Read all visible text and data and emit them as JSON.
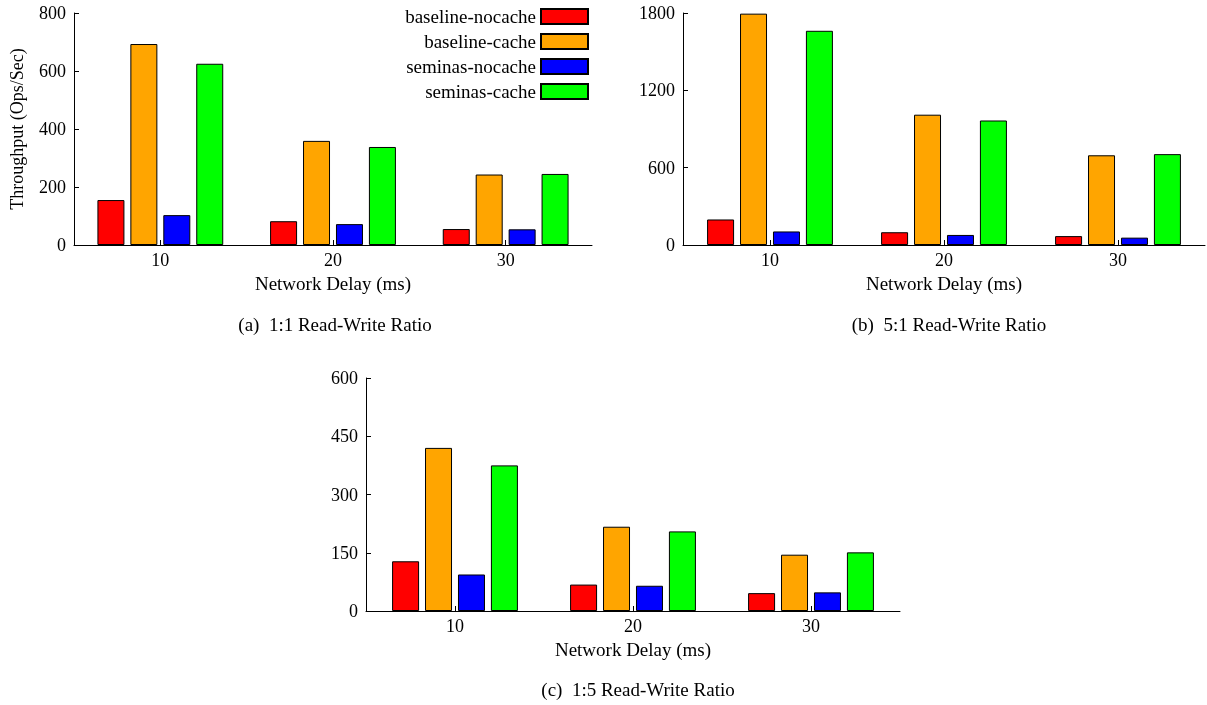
{
  "chart_data": [
    {
      "type": "bar",
      "title": "(a)  1:1 Read-Write Ratio",
      "xlabel": "Network Delay (ms)",
      "ylabel": "Throughput (Ops/Sec)",
      "categories": [
        "10",
        "20",
        "30"
      ],
      "ylim": [
        0,
        800
      ],
      "yticks": [
        0,
        200,
        400,
        600,
        800
      ],
      "legend": "top right",
      "series": [
        {
          "name": "baseline-nocache",
          "color": "#ff0000",
          "values": [
            155,
            82,
            55
          ]
        },
        {
          "name": "baseline-cache",
          "color": "#ffa500",
          "values": [
            693,
            359,
            243
          ]
        },
        {
          "name": "seminas-nocache",
          "color": "#0000ff",
          "values": [
            103,
            72,
            54
          ]
        },
        {
          "name": "seminas-cache",
          "color": "#00ff00",
          "values": [
            625,
            338,
            245
          ]
        }
      ]
    },
    {
      "type": "bar",
      "title": "(b)  5:1 Read-Write Ratio",
      "xlabel": "Network Delay (ms)",
      "categories": [
        "10",
        "20",
        "30"
      ],
      "ylim": [
        0,
        1800
      ],
      "yticks": [
        0,
        600,
        1200,
        1800
      ],
      "series": [
        {
          "color": "#ff0000",
          "values": [
            198,
            99,
            69
          ]
        },
        {
          "color": "#ffa500",
          "values": [
            1795,
            1011,
            696
          ]
        },
        {
          "color": "#0000ff",
          "values": [
            105,
            78,
            57
          ]
        },
        {
          "color": "#00ff00",
          "values": [
            1662,
            966,
            705
          ]
        }
      ]
    },
    {
      "type": "bar",
      "title": "(c)  1:5 Read-Write Ratio",
      "xlabel": "Network Delay (ms)",
      "categories": [
        "10",
        "20",
        "30"
      ],
      "ylim": [
        0,
        600
      ],
      "yticks": [
        0,
        150,
        300,
        450,
        600
      ],
      "series": [
        {
          "color": "#ff0000",
          "values": [
            128,
            68,
            46
          ]
        },
        {
          "color": "#ffa500",
          "values": [
            420,
            217,
            145
          ]
        },
        {
          "color": "#0000ff",
          "values": [
            94,
            65,
            48
          ]
        },
        {
          "color": "#00ff00",
          "values": [
            375,
            205,
            151
          ]
        }
      ]
    }
  ]
}
